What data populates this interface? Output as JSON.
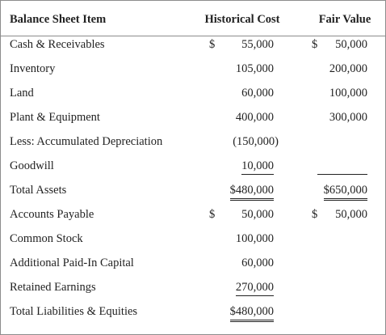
{
  "header": {
    "item": "Balance Sheet Item",
    "historical_cost": "Historical Cost",
    "fair_value": "Fair Value"
  },
  "rows": [
    {
      "item": "Cash & Receivables",
      "hist_sym": "$",
      "hist_val": "55,000",
      "fair_sym": "$",
      "fair_val": "50,000"
    },
    {
      "item": "Inventory",
      "hist_sym": "",
      "hist_val": "105,000",
      "fair_sym": "",
      "fair_val": "200,000"
    },
    {
      "item": "Land",
      "hist_sym": "",
      "hist_val": "60,000",
      "fair_sym": "",
      "fair_val": "100,000"
    },
    {
      "item": "Plant & Equipment",
      "hist_sym": "",
      "hist_val": "400,000",
      "fair_sym": "",
      "fair_val": "300,000"
    },
    {
      "item": "Less: Accumulated Depreciation",
      "hist_sym": "",
      "hist_val": "(150,000)",
      "fair_sym": "",
      "fair_val": ""
    },
    {
      "item": "Goodwill",
      "hist_sym": "",
      "hist_val": "10,000",
      "fair_sym": "",
      "fair_val": ""
    },
    {
      "item": "Total Assets",
      "hist_sym": "",
      "hist_val": "$480,000",
      "fair_sym": "",
      "fair_val": "$650,000"
    },
    {
      "item": "Accounts Payable",
      "hist_sym": "$",
      "hist_val": "50,000",
      "fair_sym": "$",
      "fair_val": "50,000"
    },
    {
      "item": "Common Stock",
      "hist_sym": "",
      "hist_val": "100,000",
      "fair_sym": "",
      "fair_val": ""
    },
    {
      "item": "Additional Paid-In Capital",
      "hist_sym": "",
      "hist_val": "60,000",
      "fair_sym": "",
      "fair_val": ""
    },
    {
      "item": "Retained Earnings",
      "hist_sym": "",
      "hist_val": "270,000",
      "fair_sym": "",
      "fair_val": ""
    },
    {
      "item": "Total Liabilities & Equities",
      "hist_sym": "",
      "hist_val": "$480,000",
      "fair_sym": "",
      "fair_val": ""
    }
  ]
}
